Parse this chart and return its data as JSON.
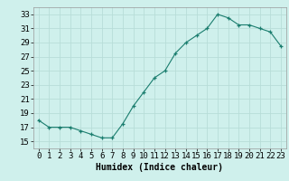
{
  "x": [
    0,
    1,
    2,
    3,
    4,
    5,
    6,
    7,
    8,
    9,
    10,
    11,
    12,
    13,
    14,
    15,
    16,
    17,
    18,
    19,
    20,
    21,
    22,
    23
  ],
  "y": [
    18,
    17,
    17,
    17,
    16.5,
    16,
    15.5,
    15.5,
    17.5,
    20,
    22,
    24,
    25,
    27.5,
    29,
    30,
    31,
    33,
    32.5,
    31.5,
    31.5,
    31,
    30.5,
    28.5
  ],
  "line_color": "#1a7d6e",
  "marker_color": "#1a7d6e",
  "bg_color": "#cff0ec",
  "grid_color": "#b8ddd8",
  "xlabel": "Humidex (Indice chaleur)",
  "ylabel_ticks": [
    15,
    17,
    19,
    21,
    23,
    25,
    27,
    29,
    31,
    33
  ],
  "xtick_labels": [
    "0",
    "1",
    "2",
    "3",
    "4",
    "5",
    "6",
    "7",
    "8",
    "9",
    "10",
    "11",
    "12",
    "13",
    "14",
    "15",
    "16",
    "17",
    "18",
    "19",
    "20",
    "21",
    "22",
    "23"
  ],
  "ylim": [
    14.0,
    34.0
  ],
  "xlim": [
    -0.5,
    23.5
  ],
  "xlabel_fontsize": 7,
  "tick_fontsize": 6.5
}
